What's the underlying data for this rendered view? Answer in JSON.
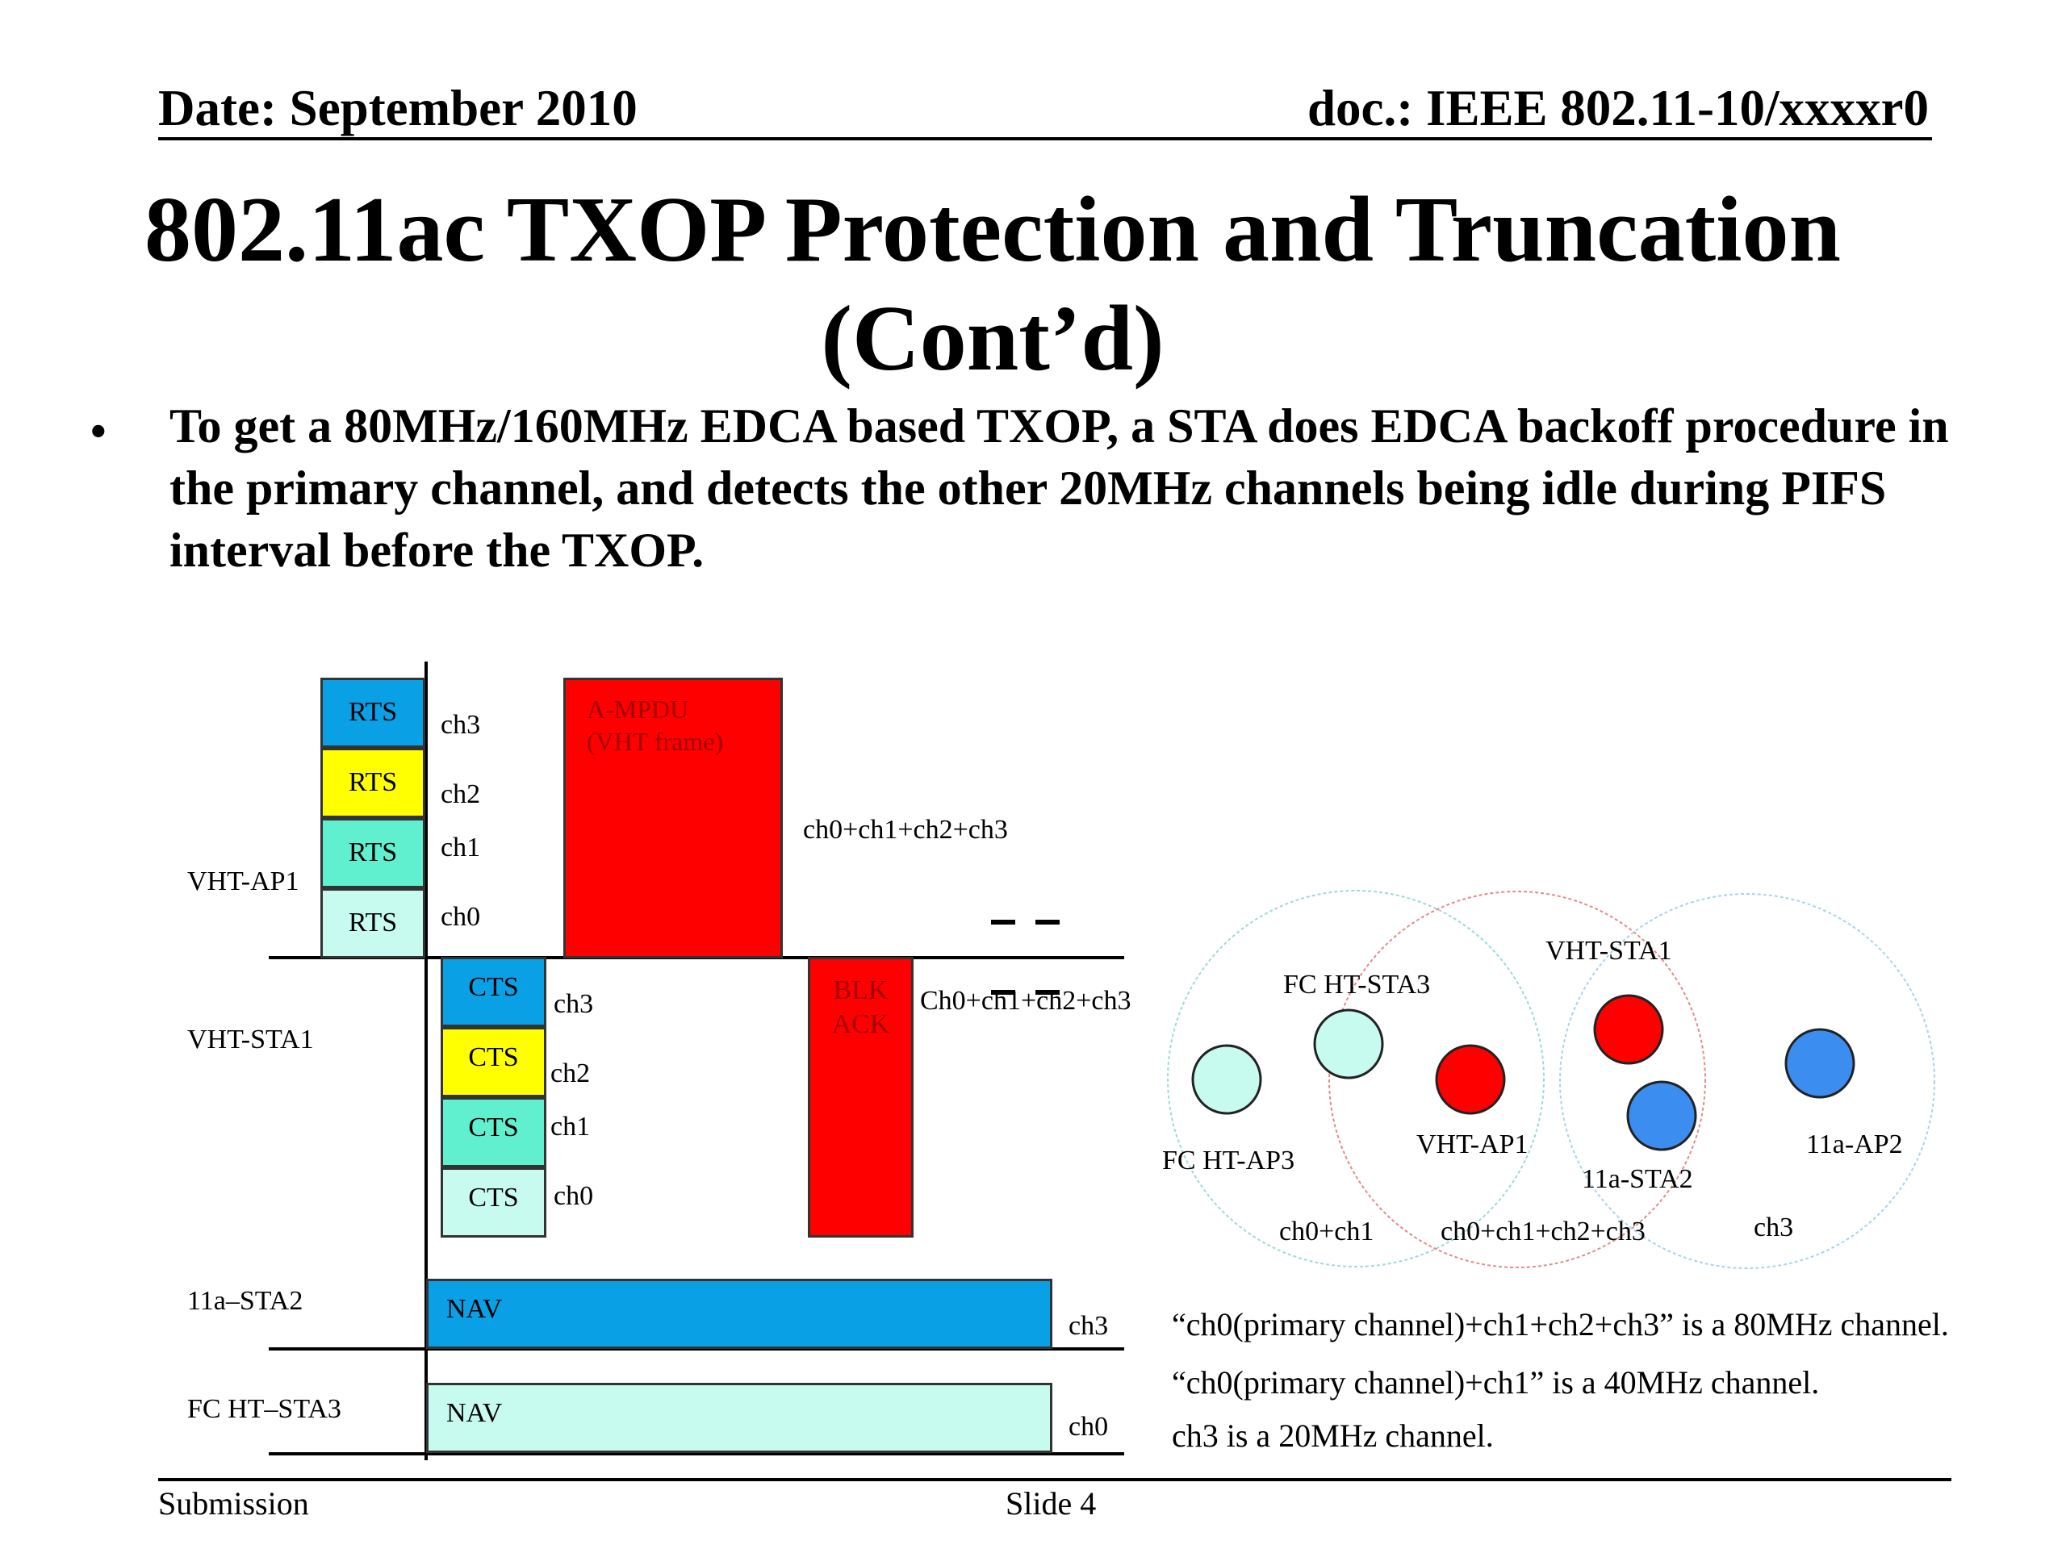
{
  "header": {
    "date": "Date: September 2010",
    "doc": "doc.: IEEE 802.11-10/xxxxr0"
  },
  "title": {
    "line1": "802.11ac TXOP Protection and Truncation",
    "line2": "(Cont’d)"
  },
  "bullet": {
    "marker": "•",
    "text": "To get a 80MHz/160MHz EDCA based TXOP, a STA does EDCA backoff procedure in the primary channel, and detects the other 20MHz channels being idle during PIFS interval before the TXOP."
  },
  "timing": {
    "rows": {
      "ap": "VHT-AP1",
      "sta": "VHT-STA1",
      "sta2": "11a–STA2",
      "sta3": "FC HT–STA3"
    },
    "rts": {
      "label": "RTS",
      "ch": [
        "ch3",
        "ch2",
        "ch1",
        "ch0"
      ]
    },
    "cts": {
      "label": "CTS",
      "ch": [
        "ch3",
        "ch2",
        "ch1",
        "ch0"
      ]
    },
    "ampdu": {
      "line1": "A-MPDU",
      "line2": "(VHT frame)",
      "ch": "ch0+ch1+ch2+ch3"
    },
    "blkack": {
      "line1": "BLK",
      "line2": "ACK",
      "ch": "Ch0+ch1+ch2+ch3"
    },
    "nav": {
      "label": "NAV",
      "ch_sta2": "ch3",
      "ch_sta3": "ch0"
    }
  },
  "topology": {
    "fc_ht_sta3": "FC HT-STA3",
    "vht_sta1": "VHT-STA1",
    "fc_ht_ap3": "FC HT-AP3",
    "vht_ap1": "VHT-AP1",
    "a11_sta2": "11a-STA2",
    "a11_ap2": "11a-AP2",
    "ch_left": "ch0+ch1",
    "ch_mid": "ch0+ch1+ch2+ch3",
    "ch_right": "ch3"
  },
  "notes": [
    "“ch0(primary channel)+ch1+ch2+ch3” is a 80MHz channel.",
    "“ch0(primary channel)+ch1” is a 40MHz channel.",
    "ch3 is a 20MHz channel."
  ],
  "footer": {
    "left": "Submission",
    "center": "Slide 4"
  },
  "colors": {
    "rts_ch3": "#0aa0e6",
    "rts_ch2": "#ffff00",
    "rts_ch1": "#60f0d0",
    "rts_ch0": "#c8fbef",
    "ampdu": "#ff0000",
    "station_red": "#ff0000",
    "station_blue": "#3b8ef0",
    "station_teal": "#c8fbef"
  }
}
